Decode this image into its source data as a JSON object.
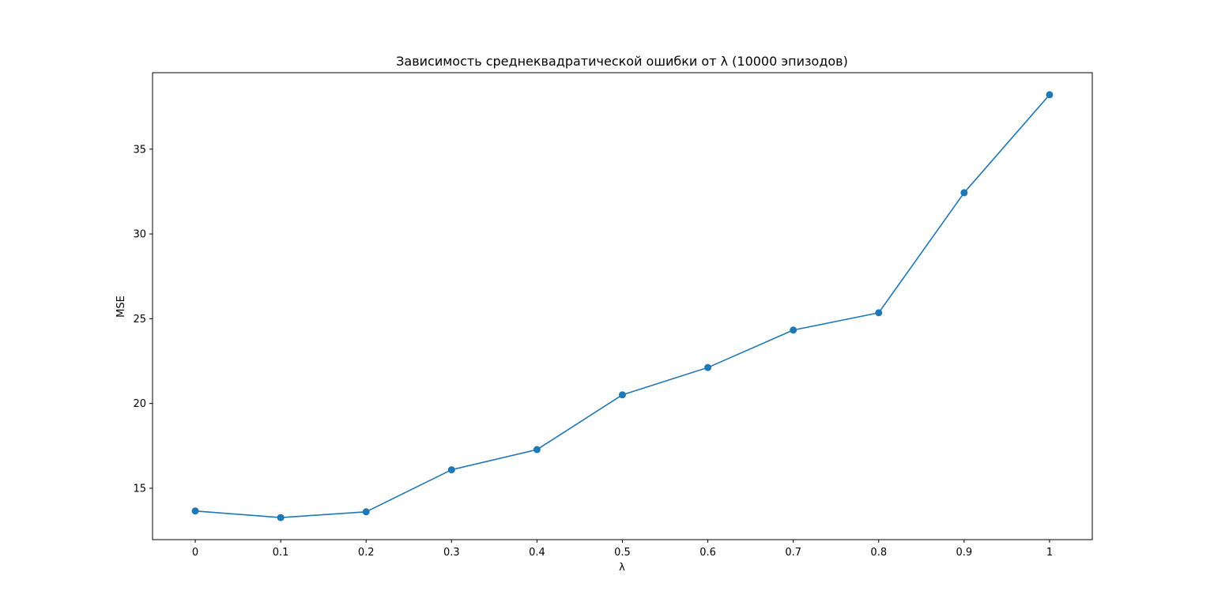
{
  "chart_data": {
    "type": "line",
    "title": "Зависимость среднеквадратической ошибки от λ (10000 эпизодов)",
    "xlabel": "λ",
    "ylabel": "MSE",
    "categories": [
      "0",
      "0.1",
      "0.2",
      "0.3",
      "0.4",
      "0.5",
      "0.6",
      "0.7",
      "0.8",
      "0.9",
      "1"
    ],
    "x": [
      0,
      0.1,
      0.2,
      0.3,
      0.4,
      0.5,
      0.6,
      0.7,
      0.8,
      0.9,
      1.0
    ],
    "series": [
      {
        "values": [
          13.66,
          13.27,
          13.61,
          16.09,
          17.28,
          20.51,
          22.12,
          24.33,
          25.35,
          32.43,
          38.21
        ],
        "color": "#1f77b4",
        "marker": "circle"
      }
    ],
    "xlim": [
      -0.05,
      1.05
    ],
    "ylim": [
      11.97,
      39.51
    ],
    "yticks": [
      15,
      20,
      25,
      30,
      35
    ],
    "grid": false,
    "legend": "none"
  }
}
